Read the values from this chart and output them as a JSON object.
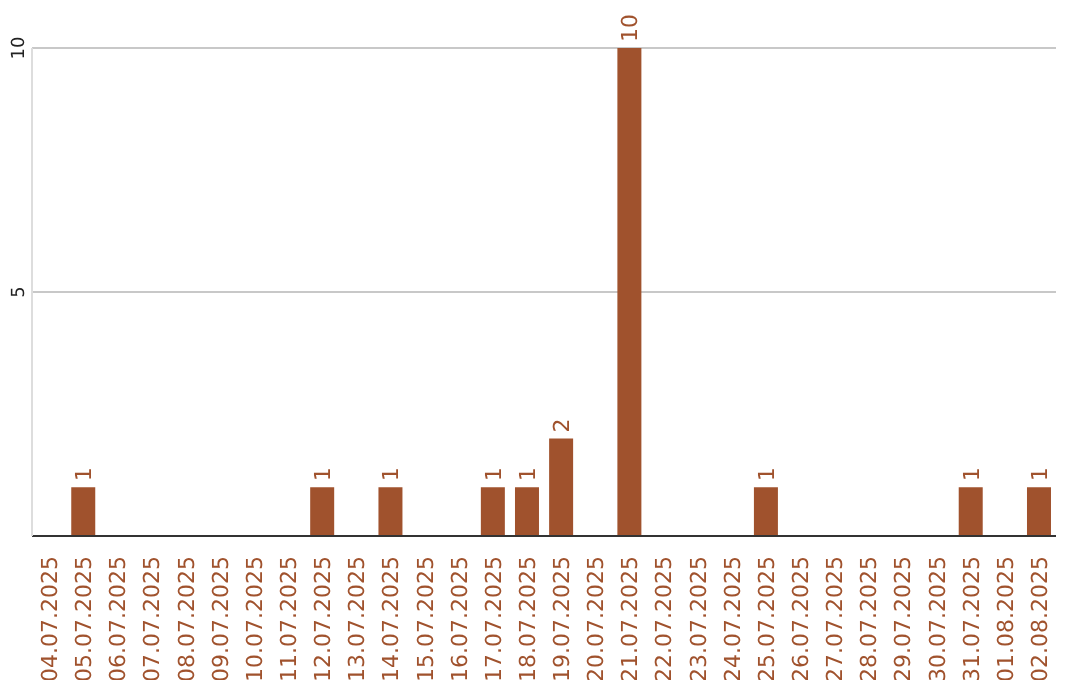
{
  "chart_data": {
    "type": "bar",
    "categories": [
      "04.07.2025",
      "05.07.2025",
      "06.07.2025",
      "07.07.2025",
      "08.07.2025",
      "09.07.2025",
      "10.07.2025",
      "11.07.2025",
      "12.07.2025",
      "13.07.2025",
      "14.07.2025",
      "15.07.2025",
      "16.07.2025",
      "17.07.2025",
      "18.07.2025",
      "19.07.2025",
      "20.07.2025",
      "21.07.2025",
      "22.07.2025",
      "23.07.2025",
      "24.07.2025",
      "25.07.2025",
      "26.07.2025",
      "27.07.2025",
      "28.07.2025",
      "29.07.2025",
      "30.07.2025",
      "31.07.2025",
      "01.08.2025",
      "02.08.2025"
    ],
    "values": [
      0,
      1,
      0,
      0,
      0,
      0,
      0,
      0,
      1,
      0,
      1,
      0,
      0,
      1,
      1,
      2,
      0,
      10,
      0,
      0,
      0,
      1,
      0,
      0,
      0,
      0,
      0,
      1,
      0,
      1
    ],
    "value_labels": [
      null,
      "1",
      null,
      null,
      null,
      null,
      null,
      null,
      "1",
      null,
      "1",
      null,
      null,
      "1",
      "1",
      "2",
      null,
      "10",
      null,
      null,
      null,
      "1",
      null,
      null,
      null,
      null,
      null,
      "1",
      null,
      "1"
    ],
    "color": "#a0522d",
    "ylim": [
      0,
      10
    ],
    "yticks": [
      5,
      10
    ],
    "grid": "y"
  }
}
